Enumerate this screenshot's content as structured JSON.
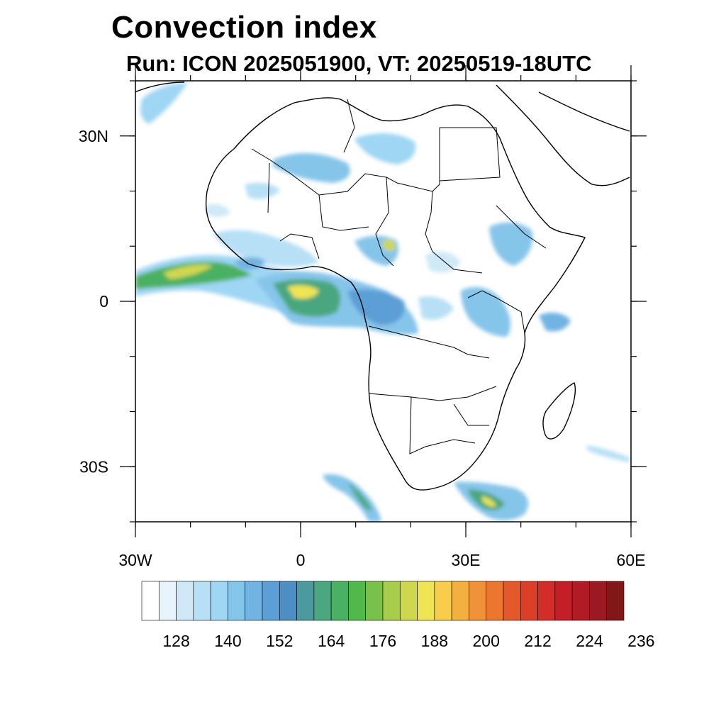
{
  "header": {
    "title": "Convection index",
    "subtitle": "Run: ICON 2025051900,  VT: 20250519-18UTC"
  },
  "map": {
    "lon_range": [
      -30,
      60
    ],
    "lat_range": [
      -40,
      40
    ],
    "x_ticks": [
      {
        "lon": -30,
        "label": "30W"
      },
      {
        "lon": 0,
        "label": "0"
      },
      {
        "lon": 30,
        "label": "30E"
      },
      {
        "lon": 60,
        "label": "60E"
      }
    ],
    "y_ticks": [
      {
        "lat": 30,
        "label": "30N"
      },
      {
        "lat": 0,
        "label": "0"
      },
      {
        "lat": -30,
        "label": "30S"
      }
    ],
    "land_color": "#ffffff",
    "outline_color": "#000000"
  },
  "colorbar": {
    "colors": [
      "#ffffff",
      "#e8f4fb",
      "#cfe9f7",
      "#b7e0f6",
      "#9fd6f4",
      "#86c5ea",
      "#71b3e2",
      "#5c9fd6",
      "#4d8ec4",
      "#4b9aa0",
      "#4aa77f",
      "#4bb162",
      "#52b84b",
      "#78c14d",
      "#a8cc4c",
      "#cfd74f",
      "#efe453",
      "#f7cd4b",
      "#f3b03f",
      "#f09338",
      "#ec7530",
      "#e4592b",
      "#dc3f28",
      "#d42c27",
      "#c41f26",
      "#b21a25",
      "#9c1822",
      "#821717"
    ],
    "labels": [
      "128",
      "140",
      "152",
      "164",
      "176",
      "188",
      "200",
      "212",
      "224",
      "236"
    ],
    "label_start_index": 2,
    "label_step": 3
  }
}
